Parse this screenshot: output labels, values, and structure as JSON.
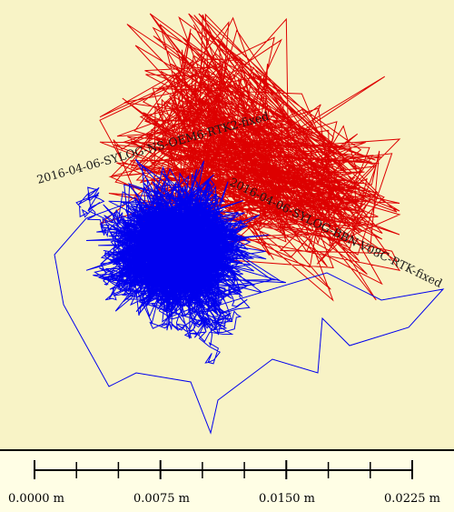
{
  "chart_data": {
    "type": "scatter",
    "series": [
      {
        "name": "2016-04-06-SYLOG-NS-OEM6-RTK2-fixed",
        "color": "#dd0000"
      },
      {
        "name": "2016-04-06-SYLOG-BBN-V08C-RTK-fixed",
        "color": "#0000ee"
      }
    ],
    "scale_bar": {
      "unit": "m",
      "tick_labels": [
        "0.0000 m",
        "0.0075 m",
        "0.0150 m",
        "0.0225 m"
      ]
    }
  }
}
